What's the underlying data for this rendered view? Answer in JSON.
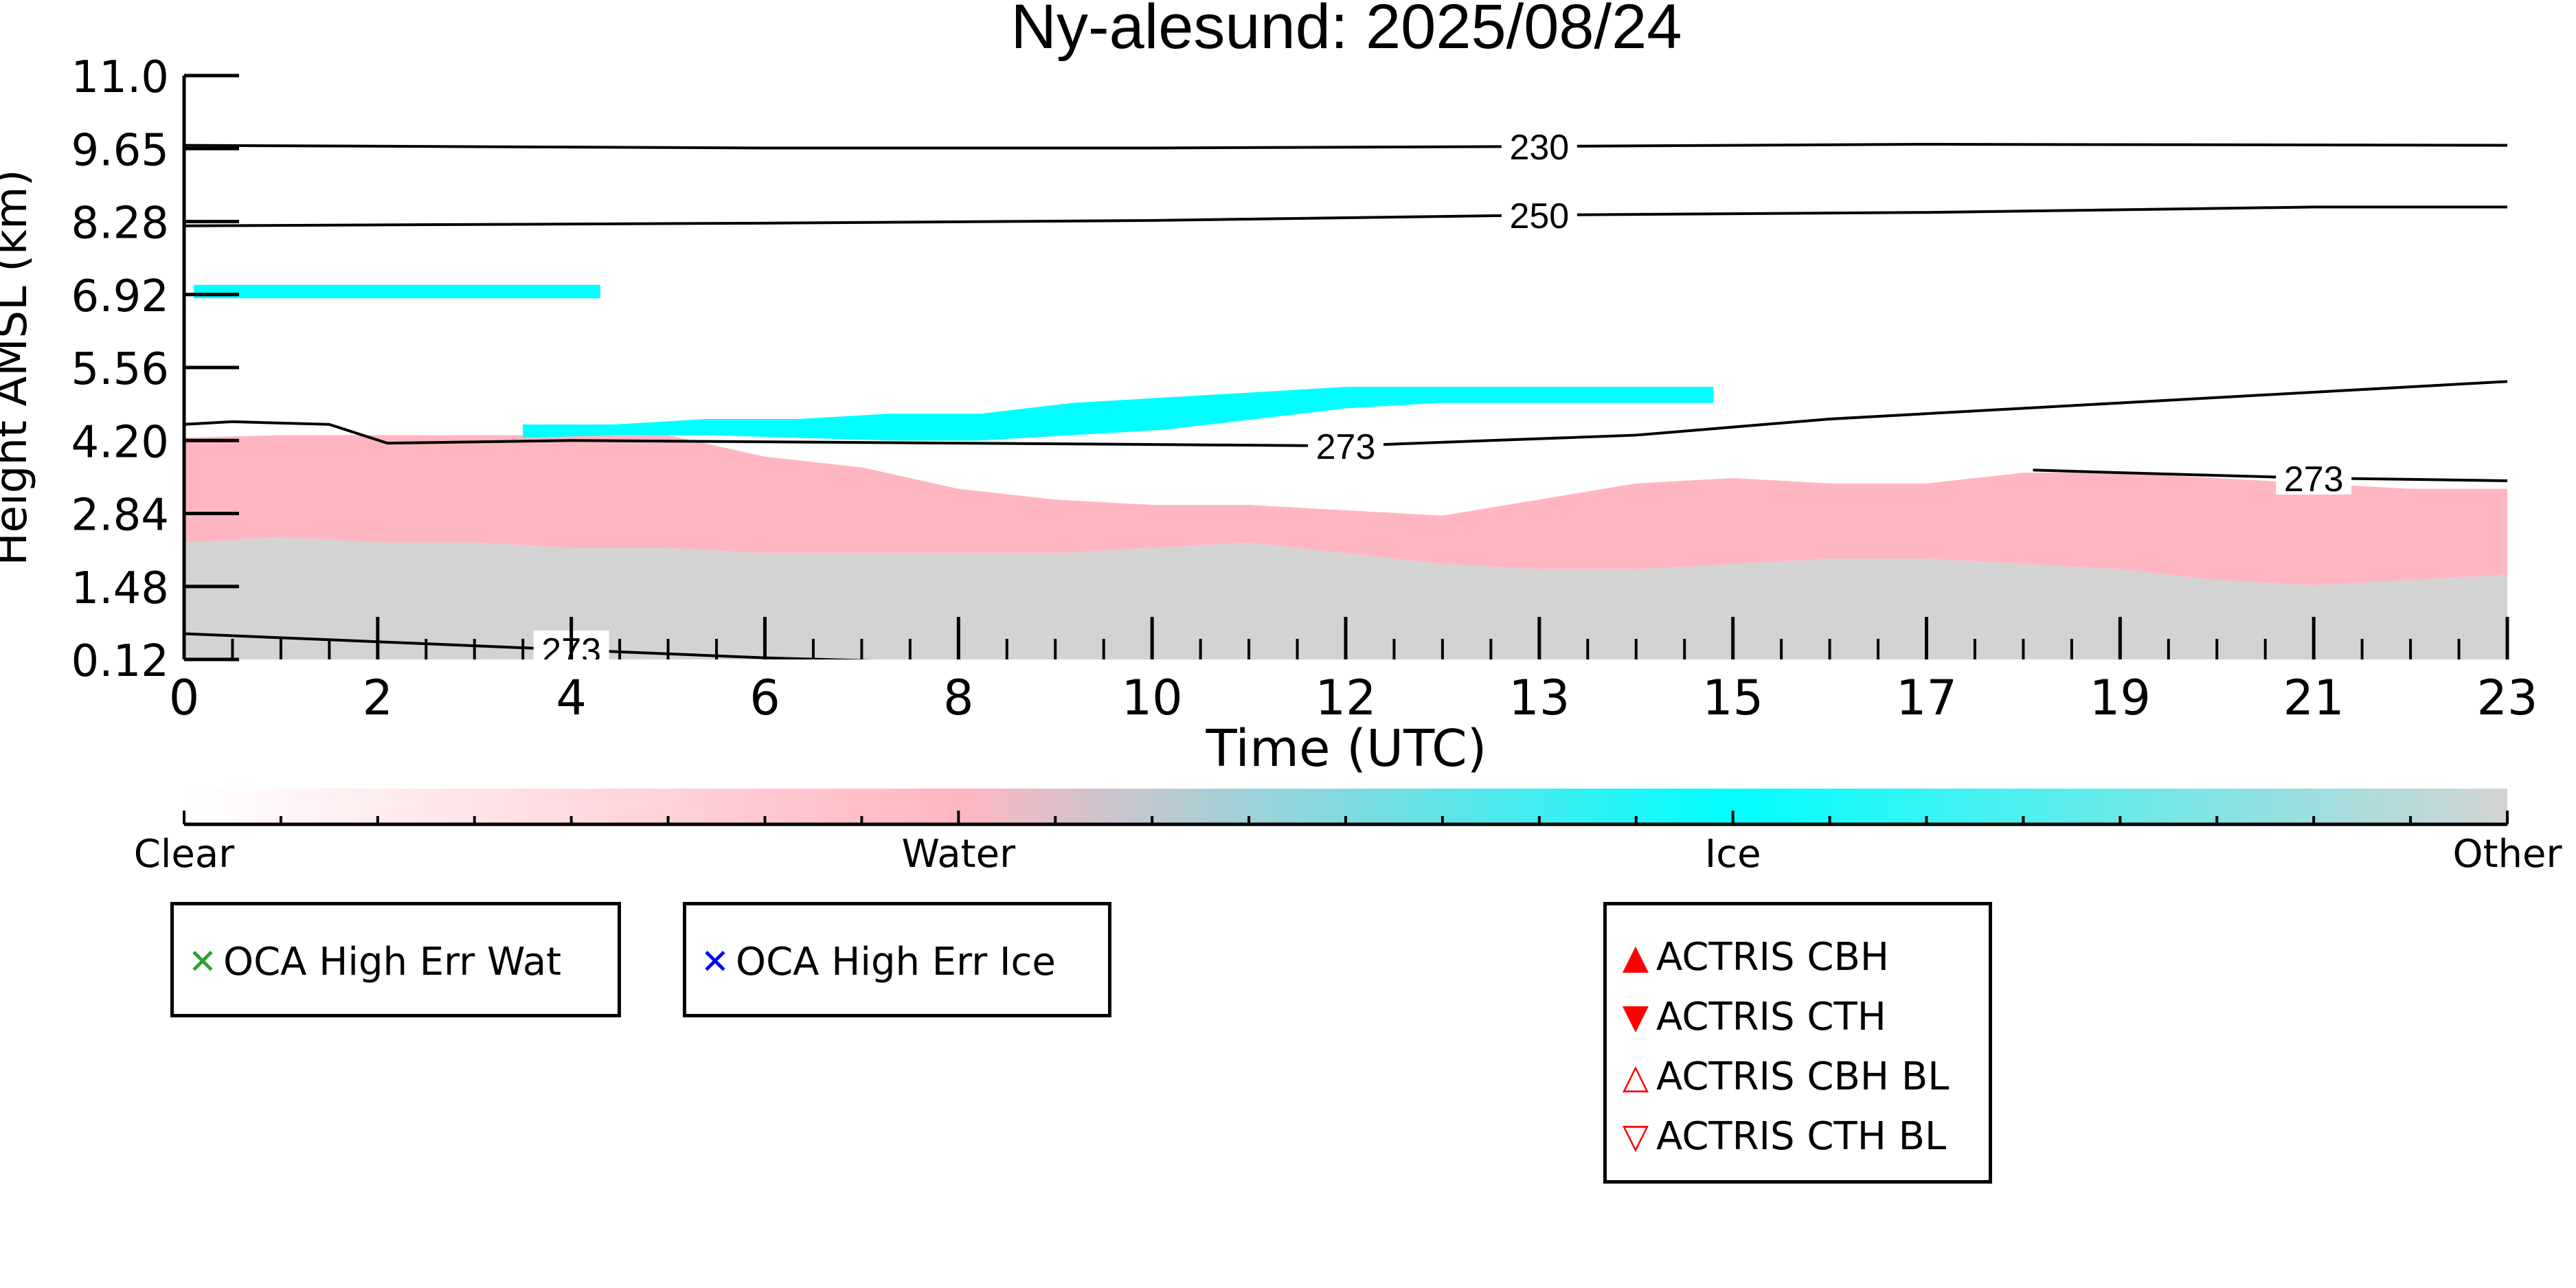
{
  "chart_data": {
    "type": "heatmap",
    "title": "Ny-alesund: 2025/08/24",
    "xlabel": "Time (UTC)",
    "ylabel": "Height AMSL (km)",
    "xlim": [
      0,
      24
    ],
    "ylim": [
      0.12,
      11.0
    ],
    "xtick_labels": [
      "0",
      "2",
      "4",
      "6",
      "8",
      "10",
      "12",
      "13",
      "15",
      "17",
      "19",
      "21",
      "23"
    ],
    "ytick_labels": [
      "0.12",
      "1.48",
      "2.84",
      "4.20",
      "5.56",
      "6.92",
      "8.28",
      "9.65",
      "11.0"
    ],
    "categories": [
      "Clear",
      "Water",
      "Ice",
      "Other"
    ],
    "category_colors": {
      "Clear": "#ffffff",
      "Water": "#ffb6c1",
      "Ice": "#00ffff",
      "Other": "#d3d3d3"
    },
    "layers": [
      {
        "category": "Other",
        "t_start": 0,
        "t_end": 24,
        "base_km": 0.12,
        "top_km": [
          2.3,
          2.4,
          2.3,
          2.3,
          2.2,
          2.2,
          2.1,
          2.1,
          2.1,
          2.1,
          2.2,
          2.3,
          2.1,
          1.9,
          1.8,
          1.8,
          1.9,
          2.0,
          2.0,
          1.9,
          1.8,
          1.6,
          1.5,
          1.6,
          1.7
        ]
      },
      {
        "category": "Water",
        "t_start": 0,
        "t_end": 24,
        "base_km": [
          2.3,
          2.4,
          2.3,
          2.3,
          2.2,
          2.2,
          2.1,
          2.1,
          2.1,
          2.1,
          2.2,
          2.3,
          2.1,
          1.9,
          1.8,
          1.8,
          1.9,
          2.0,
          2.0,
          1.9,
          1.8,
          1.6,
          1.5,
          1.6,
          1.7
        ],
        "top_km": [
          4.25,
          4.3,
          4.3,
          4.3,
          4.3,
          4.3,
          3.9,
          3.7,
          3.3,
          3.1,
          3.0,
          3.0,
          2.9,
          2.8,
          3.1,
          3.4,
          3.5,
          3.4,
          3.4,
          3.6,
          3.6,
          3.5,
          3.4,
          3.3,
          3.3
        ]
      },
      {
        "category": "Ice",
        "t_start": 3.5,
        "t_end": 15.8,
        "base_km": [
          4.25,
          4.3,
          4.3,
          4.25,
          4.2,
          4.2,
          4.3,
          4.4,
          4.6,
          4.8,
          4.9,
          4.9,
          4.9,
          4.9
        ],
        "top_km": [
          4.5,
          4.5,
          4.6,
          4.6,
          4.7,
          4.7,
          4.9,
          5.0,
          5.1,
          5.2,
          5.2,
          5.2,
          5.2,
          5.2
        ]
      },
      {
        "category": "Ice",
        "t_start": 0.1,
        "t_end": 4.3,
        "base_km": 6.85,
        "top_km": 7.1
      }
    ],
    "isotherms": [
      {
        "label": "230",
        "x": [
          0,
          6,
          10,
          14,
          18,
          24
        ],
        "y": [
          9.7,
          9.65,
          9.65,
          9.68,
          9.72,
          9.7
        ]
      },
      {
        "label": "250",
        "x": [
          0,
          6,
          10,
          14,
          18,
          22,
          24
        ],
        "y": [
          8.2,
          8.25,
          8.3,
          8.4,
          8.45,
          8.55,
          8.55
        ]
      },
      {
        "label": "273",
        "x": [
          0,
          0.5,
          1.5,
          2.1,
          4,
          8,
          12,
          15,
          17,
          19,
          21,
          24
        ],
        "y": [
          4.5,
          4.55,
          4.5,
          4.15,
          4.2,
          4.15,
          4.1,
          4.3,
          4.6,
          4.8,
          5.0,
          5.3
        ]
      },
      {
        "label": "273",
        "x": [
          19.1,
          20,
          22,
          24
        ],
        "y": [
          3.65,
          3.6,
          3.5,
          3.45
        ]
      },
      {
        "label": "273",
        "x": [
          0,
          2,
          4,
          6,
          8
        ],
        "y": [
          0.6,
          0.45,
          0.3,
          0.15,
          0.05
        ]
      }
    ],
    "colorbar": {
      "labels": [
        "Clear",
        "Water",
        "Ice",
        "Other"
      ]
    },
    "legends": [
      {
        "entries": [
          {
            "label": "OCA High Err Wat",
            "marker": "x",
            "color": "#2ca02c"
          }
        ]
      },
      {
        "entries": [
          {
            "label": "OCA High Err Ice",
            "marker": "x",
            "color": "#0000ff"
          }
        ]
      },
      {
        "entries": [
          {
            "label": "ACTRIS CBH",
            "marker": "▲",
            "color": "#ff0000"
          },
          {
            "label": "ACTRIS CTH",
            "marker": "▼",
            "color": "#ff0000"
          },
          {
            "label": "ACTRIS CBH BL",
            "marker": "△",
            "color": "#ff0000"
          },
          {
            "label": "ACTRIS CTH BL",
            "marker": "▽",
            "color": "#ff0000"
          }
        ]
      }
    ]
  }
}
